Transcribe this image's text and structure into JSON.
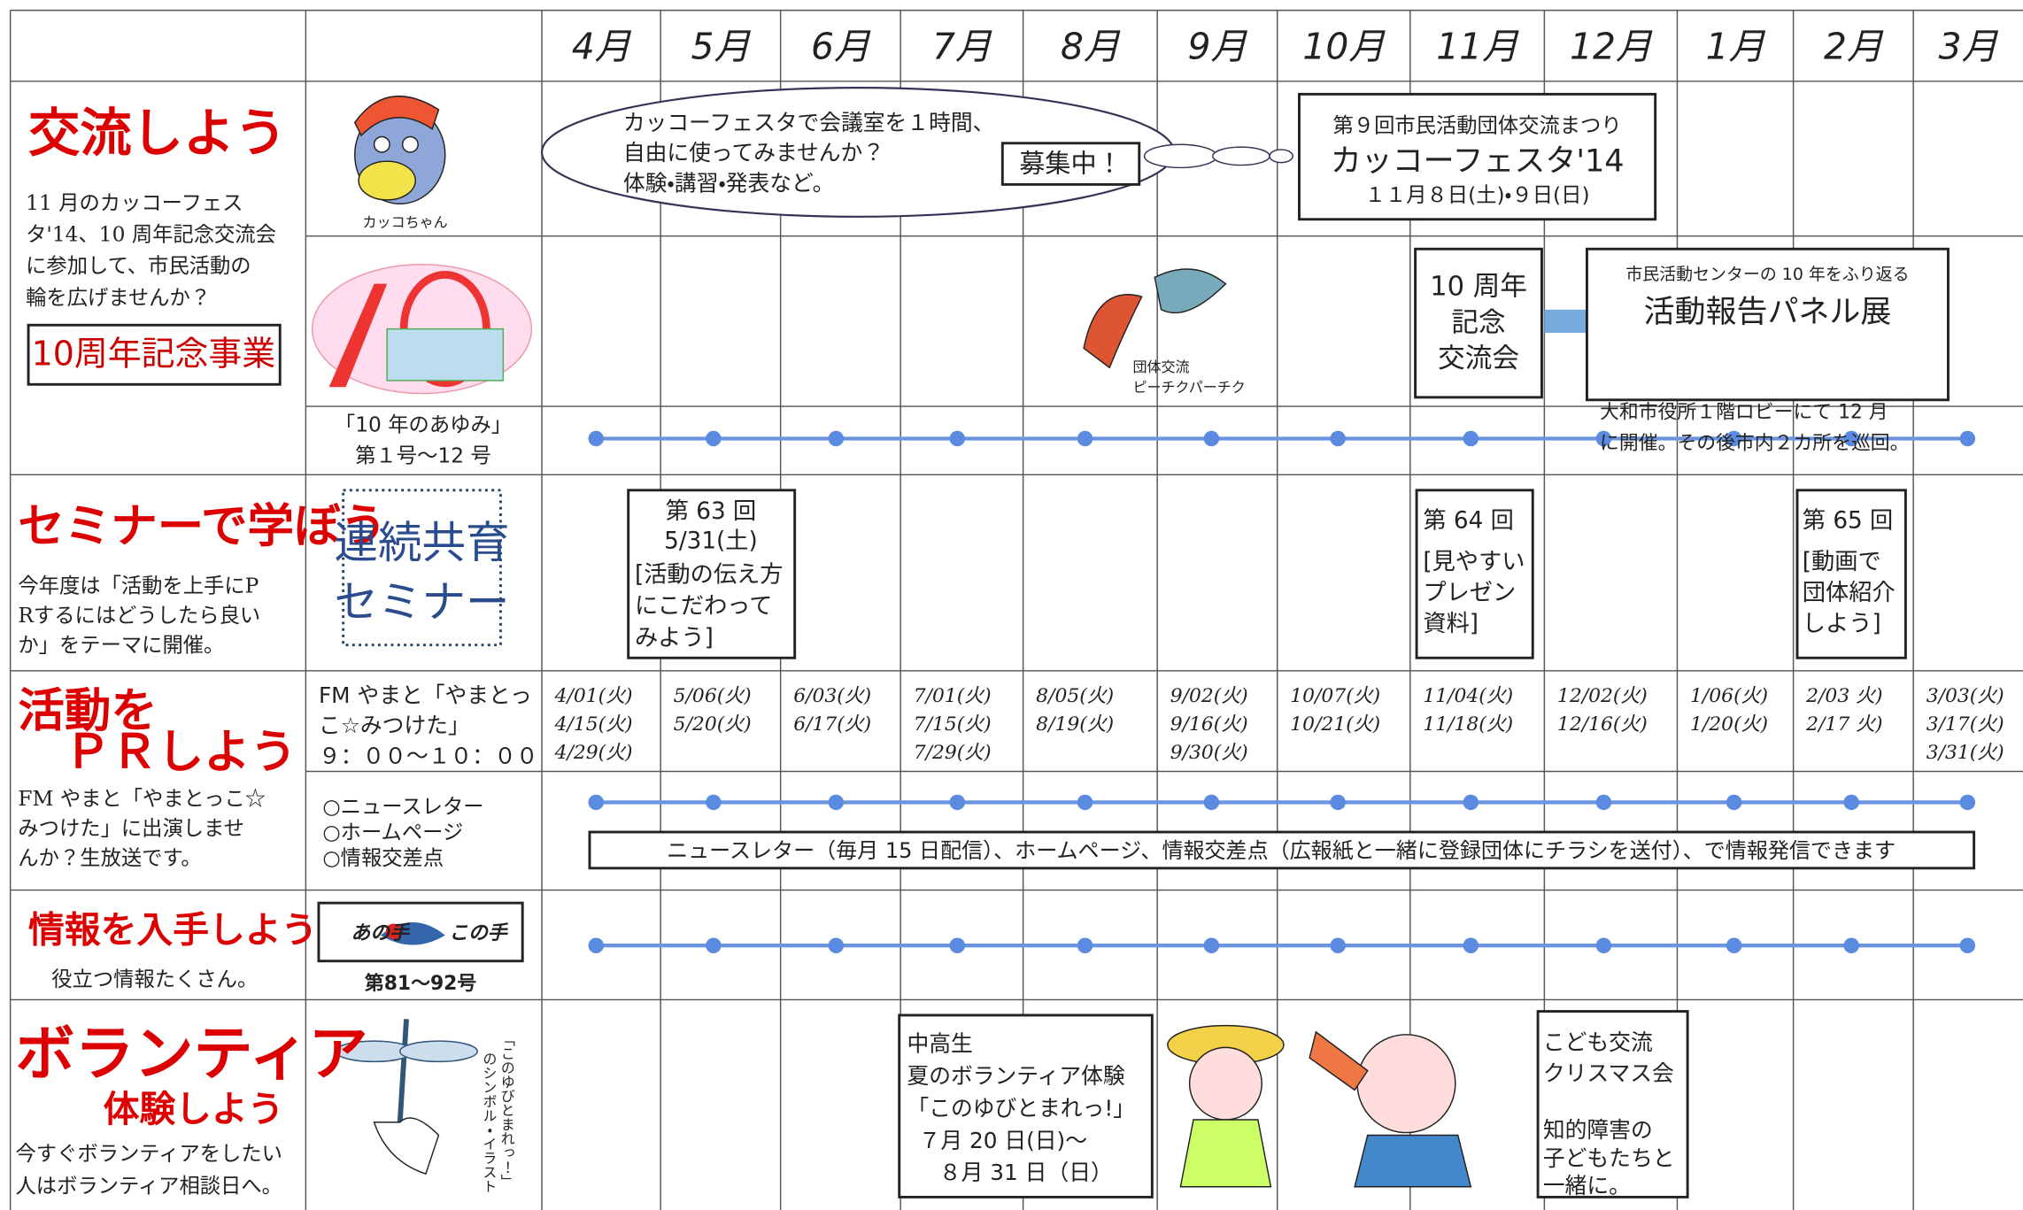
{
  "header": {
    "months": [
      "4月",
      "5月",
      "6月",
      "7月",
      "8月",
      "9月",
      "10月",
      "11月",
      "12月",
      "1月",
      "2月",
      "3月"
    ]
  },
  "exchange": {
    "title": "交流しよう",
    "description": [
      "11 月のカッコーフェス",
      "タ'14、10 周年記念交流会",
      "に参加して、市民活動の",
      "輪を広げませんか？"
    ],
    "badge": "10周年記念事業",
    "mascot_caption": "カッコちゃん",
    "bubble": [
      "カッコーフェスタで会議室を１時間、",
      "自由に使ってみませんか？",
      "体験・講習・発表など。"
    ],
    "recruiting": "募集中！",
    "festa": [
      "第９回市民活動団体交流まつり",
      "カッコーフェスタ'14",
      "１１月８日(土)・９日(日)"
    ],
    "bird_caption": [
      "団体交流",
      "ピーチクパーチク"
    ],
    "anniversary": [
      "10 周年",
      "記念",
      "交流会"
    ],
    "panel": [
      "市民活動センターの 10 年をふり返る",
      "活動報告パネル展",
      "大和市役所１階ロビーにて 12 月",
      "に開催。その後市内２カ所を巡回。"
    ],
    "ayumi": [
      "「10 年のあゆみ」",
      "第１号～12 号"
    ]
  },
  "seminar": {
    "title": "セミナーで学ぼう",
    "description": [
      "今年度は「活動を上手にP",
      "Rするにはどうしたら良い",
      "か」をテーマに開催。"
    ],
    "logo": [
      "連続共育",
      "セミナー"
    ],
    "sessions": [
      [
        "第 63 回",
        "5/31(土)",
        "[活動の伝え方",
        "にこだわって",
        "みよう]"
      ],
      [
        "第 64 回",
        "[見やすい",
        "プレゼン",
        "資料]"
      ],
      [
        "第 65 回",
        "[動画で",
        "団体紹介",
        "しよう]"
      ]
    ]
  },
  "pr": {
    "title": [
      "活動を",
      "ＰＲしよう"
    ],
    "description": [
      "FM やまと「やまとっこ☆",
      "みつけた」に出演しませ",
      "んか？生放送です。"
    ],
    "fm_label": [
      "FM やまと「やまとっ",
      "こ☆みつけた」",
      "９：００～１０：００"
    ],
    "fm_dates": [
      [
        "4/01(火)",
        "4/15(火)",
        "4/29(火)"
      ],
      [
        "5/06(火)",
        "5/20(火)"
      ],
      [
        "6/03(火)",
        "6/17(火)"
      ],
      [
        "7/01(火)",
        "7/15(火)",
        "7/29(火)"
      ],
      [
        "8/05(火)",
        "8/19(火)"
      ],
      [
        "9/02(火)",
        "9/16(火)",
        "9/30(火)"
      ],
      [
        "10/07(火)",
        "10/21(火)"
      ],
      [
        "11/04(火)",
        "11/18(火)"
      ],
      [
        "12/02(火)",
        "12/16(火)"
      ],
      [
        "1/06(火)",
        "1/20(火)"
      ],
      [
        "2/03 火)",
        "2/17 火)"
      ],
      [
        "3/03(火)",
        "3/17(火)",
        "3/31(火)"
      ]
    ],
    "channels": [
      "○ニュースレター",
      "○ホームページ",
      "○情報交差点"
    ],
    "banner": "ニュースレター（毎月 15 日配信）、ホームページ、情報交差点（広報紙と一緒に登録団体にチラシを送付）、で情報発信できます"
  },
  "info": {
    "title": "情報を入手しよう",
    "description": "役立つ情報たくさん。",
    "logo": [
      "あの手",
      "この手"
    ],
    "issues": "第81～92号"
  },
  "volunteer": {
    "title": [
      "ボランティア",
      "体験しよう"
    ],
    "description": [
      "今すぐボランティアをしたい",
      "人はボランティア相談日へ。"
    ],
    "caption": [
      "「このゆびとまれっ！」",
      "のシンボル・イラスト"
    ],
    "summer": [
      "中高生",
      "夏のボランティア体験",
      "「このゆびとまれっ!」",
      "７月 20 日(日)～",
      "８月 31 日（日）"
    ],
    "christmas": [
      "こども交流",
      "クリスマス会",
      "知的障害の",
      "子どもたちと",
      "一緒に。"
    ]
  }
}
